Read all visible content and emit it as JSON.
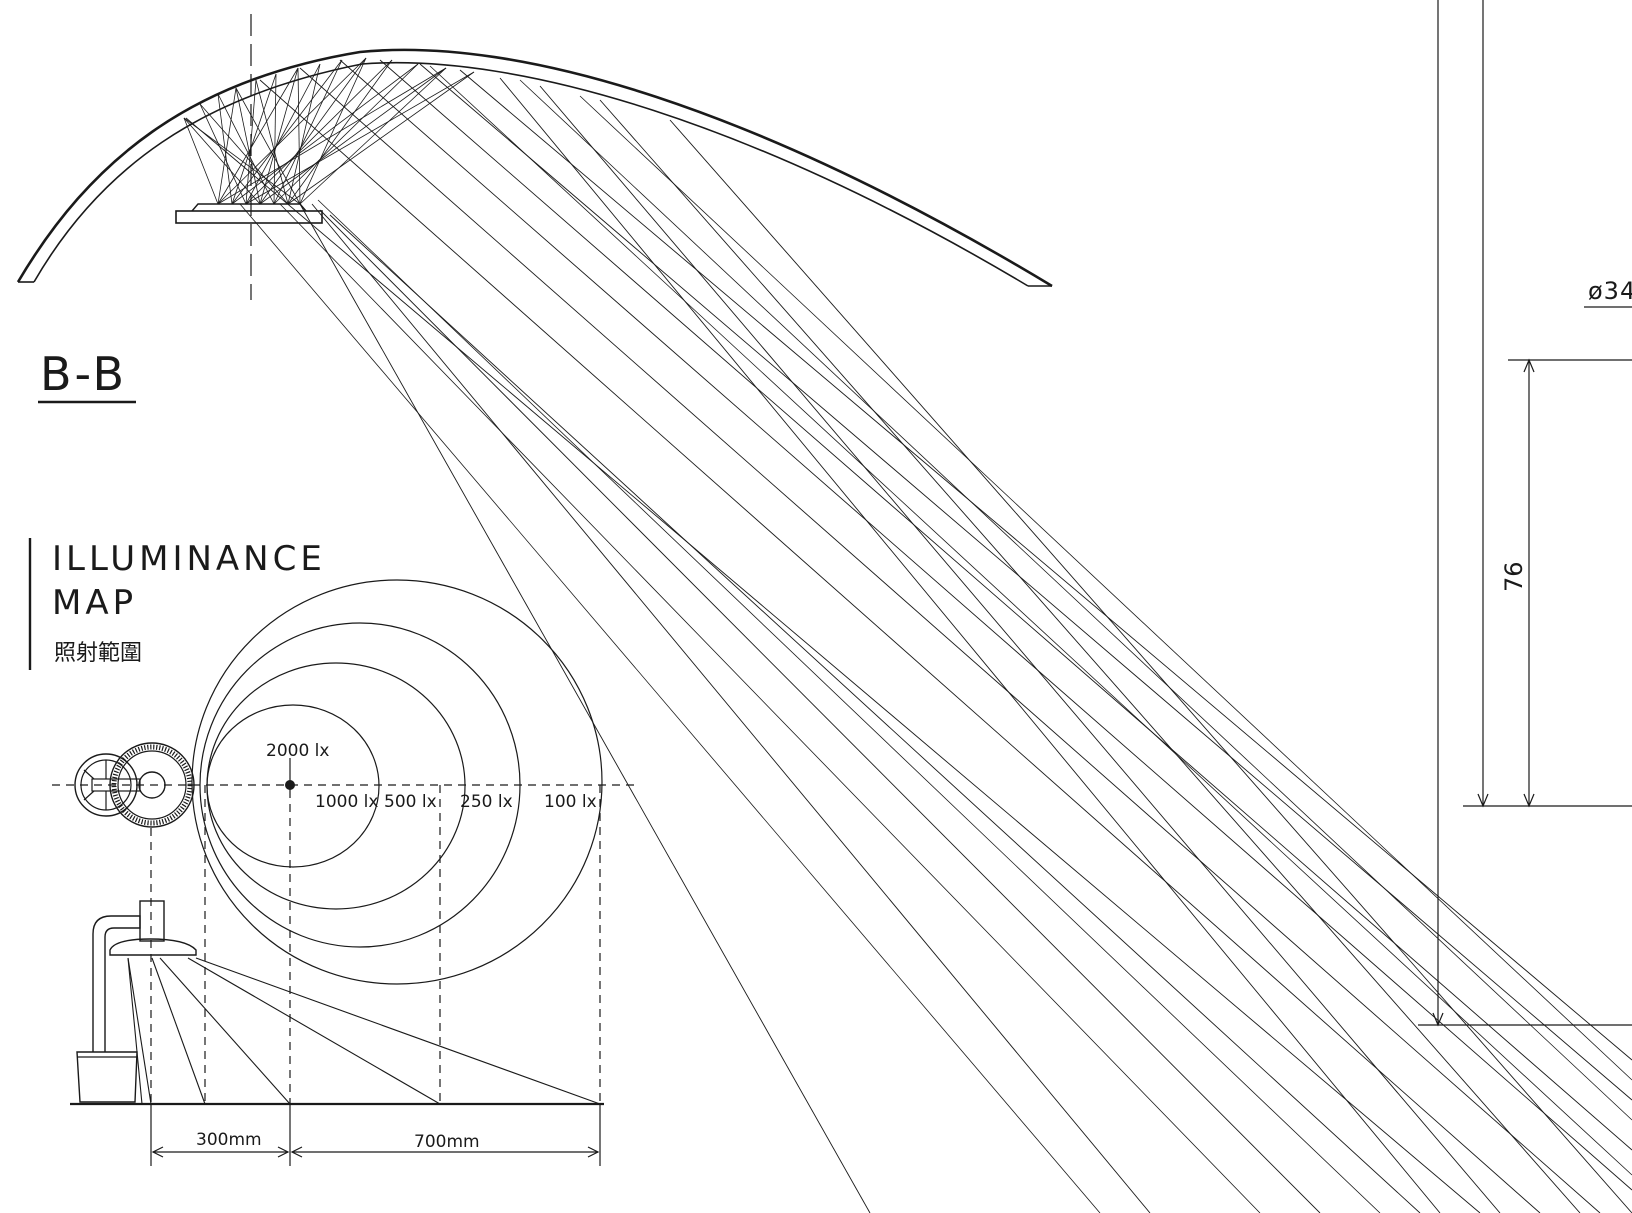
{
  "section": {
    "label": "B-B"
  },
  "illuminance_map": {
    "title_line1": "ILLUMINANCE",
    "title_line2": "MAP",
    "subtitle": "照射範圍",
    "levels": [
      "2000 lx",
      "1000 lx",
      "500 lx",
      "250 lx",
      "100 lx"
    ],
    "dimensions": [
      "300mm",
      "700mm"
    ]
  },
  "right_dimensions": {
    "diameter_label": "ø34",
    "height_label": "76"
  },
  "colors": {
    "ink": "#1a1a1a",
    "paper": "#ffffff"
  }
}
